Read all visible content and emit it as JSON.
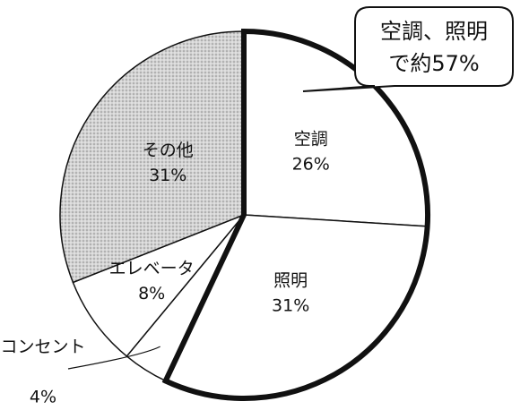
{
  "chart_data": {
    "type": "pie",
    "categories": [
      "空調",
      "照明",
      "コンセント",
      "エレベータ",
      "その他"
    ],
    "values": [
      26,
      31,
      4,
      8,
      31
    ],
    "value_labels": [
      "26%",
      "31%",
      "4%",
      "8%",
      "31%"
    ],
    "colors": [
      "#ffffff",
      "#ffffff",
      "#ffffff",
      "#ffffff",
      "#d4d4d4"
    ],
    "highlight": [
      "空調",
      "照明"
    ],
    "annotation": [
      "空調、照明",
      "で約57%"
    ]
  }
}
